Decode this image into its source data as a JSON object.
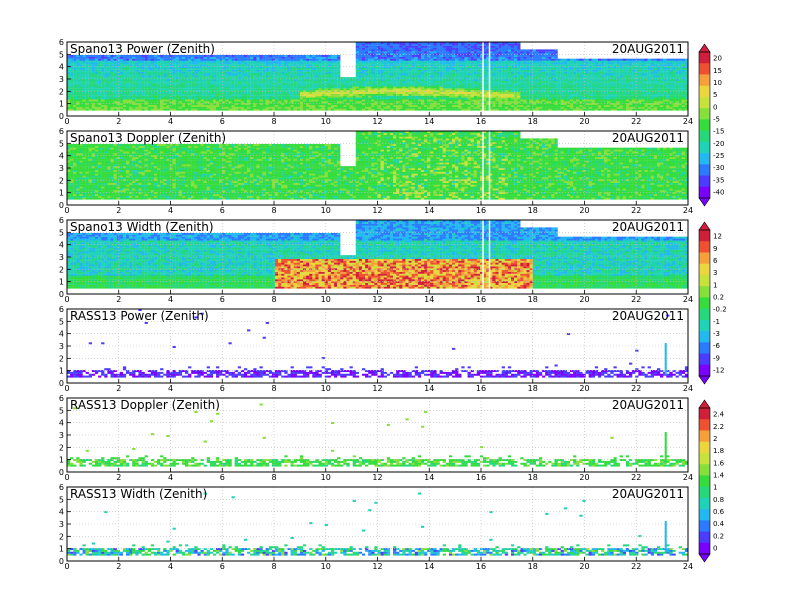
{
  "colors": {
    "scale": [
      "#7a00ff",
      "#4b3cff",
      "#2a7bff",
      "#22b8f0",
      "#1fd3b6",
      "#25d87a",
      "#34dc3c",
      "#86e03a",
      "#c8e23c",
      "#ecd63e",
      "#f5a03a",
      "#ef5030",
      "#d01f3a"
    ]
  },
  "chart_data": [
    {
      "type": "heatmap",
      "title": "Spano13 Power (Zenith)",
      "date": "20AUG2011",
      "x_ticks": [
        "0",
        "2",
        "4",
        "6",
        "8",
        "10",
        "12",
        "14",
        "16",
        "18",
        "20",
        "22",
        "24"
      ],
      "y_ticks": [
        "0",
        "1",
        "2",
        "3",
        "4",
        "5",
        "6"
      ],
      "xlim": [
        0,
        24
      ],
      "ylim": [
        0,
        6
      ],
      "grid": true,
      "colorbar_group": "A",
      "summary_bands": [
        {
          "x": [
            0,
            11
          ],
          "y": [
            0.5,
            5.0
          ],
          "level": "low-to-mid"
        },
        {
          "x": [
            11,
            24
          ],
          "y": [
            0.5,
            6.0
          ],
          "level": "low-to-mid"
        },
        {
          "x": [
            9.5,
            17.5
          ],
          "y": [
            1.2,
            2.4
          ],
          "level": "high (yellow)"
        }
      ]
    },
    {
      "type": "heatmap",
      "title": "Spano13 Doppler (Zenith)",
      "date": "20AUG2011",
      "x_ticks": [
        "0",
        "2",
        "4",
        "6",
        "8",
        "10",
        "12",
        "14",
        "16",
        "18",
        "20",
        "22",
        "24"
      ],
      "y_ticks": [
        "0",
        "1",
        "2",
        "3",
        "4",
        "5",
        "6"
      ],
      "xlim": [
        0,
        24
      ],
      "ylim": [
        0,
        6
      ],
      "grid": true,
      "colorbar_group": "A"
    },
    {
      "type": "heatmap",
      "title": "Spano13 Width (Zenith)",
      "date": "20AUG2011",
      "x_ticks": [
        "0",
        "2",
        "4",
        "6",
        "8",
        "10",
        "12",
        "14",
        "16",
        "18",
        "20",
        "22",
        "24"
      ],
      "y_ticks": [
        "0",
        "1",
        "2",
        "3",
        "4",
        "5",
        "6"
      ],
      "xlim": [
        0,
        24
      ],
      "ylim": [
        0,
        6
      ],
      "grid": true,
      "colorbar_group": "B",
      "summary_bands": [
        {
          "x": [
            8,
            18
          ],
          "y": [
            0.5,
            2.8
          ],
          "level": "high (red/yellow)"
        }
      ]
    },
    {
      "type": "heatmap",
      "title": "RASS13 Power (Zenith)",
      "date": "20AUG2011",
      "x_ticks": [
        "0",
        "2",
        "4",
        "6",
        "8",
        "10",
        "12",
        "14",
        "16",
        "18",
        "20",
        "22",
        "24"
      ],
      "y_ticks": [
        "0",
        "1",
        "2",
        "3",
        "4",
        "5",
        "6"
      ],
      "xlim": [
        0,
        24
      ],
      "ylim": [
        0,
        6
      ],
      "grid": true,
      "colorbar_group": "B"
    },
    {
      "type": "heatmap",
      "title": "RASS13 Doppler (Zenith)",
      "date": "20AUG2011",
      "x_ticks": [
        "0",
        "2",
        "4",
        "6",
        "8",
        "10",
        "12",
        "14",
        "16",
        "18",
        "20",
        "22",
        "24"
      ],
      "y_ticks": [
        "0",
        "1",
        "2",
        "3",
        "4",
        "5",
        "6"
      ],
      "xlim": [
        0,
        24
      ],
      "ylim": [
        0,
        6
      ],
      "grid": true,
      "colorbar_group": "C"
    },
    {
      "type": "heatmap",
      "title": "RASS13 Width (Zenith)",
      "date": "20AUG2011",
      "x_ticks": [
        "0",
        "2",
        "4",
        "6",
        "8",
        "10",
        "12",
        "14",
        "16",
        "18",
        "20",
        "22",
        "24"
      ],
      "y_ticks": [
        "0",
        "1",
        "2",
        "3",
        "4",
        "5",
        "6"
      ],
      "xlim": [
        0,
        24
      ],
      "ylim": [
        0,
        6
      ],
      "grid": true,
      "colorbar_group": "C"
    }
  ],
  "colorbars": {
    "A": {
      "labels": [
        "20",
        "15",
        "10",
        "5",
        "0",
        "-5",
        "-15",
        "-20",
        "-25",
        "-30",
        "-35",
        "-40"
      ]
    },
    "B": {
      "labels": [
        "12",
        "9",
        "6",
        "3",
        "1",
        "0.2",
        "-0.2",
        "-1",
        "-3",
        "-6",
        "-9",
        "-12"
      ]
    },
    "C": {
      "labels": [
        "2.4",
        "2.2",
        "2",
        "1.8",
        "1.6",
        "1.4",
        "1",
        "0.8",
        "0.6",
        "0.4",
        "0.2",
        "0"
      ]
    }
  }
}
